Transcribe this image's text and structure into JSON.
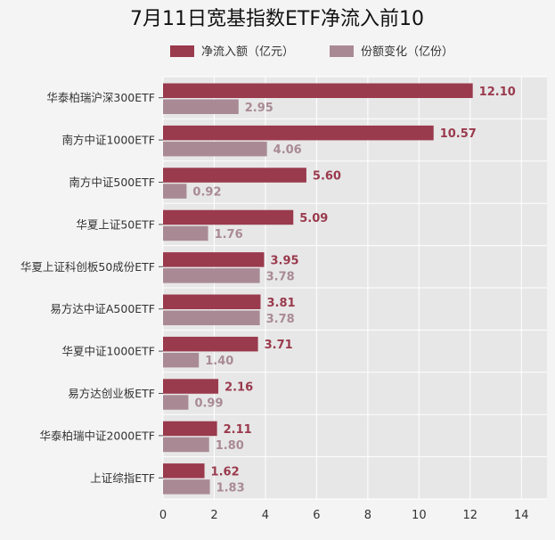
{
  "chart_data": {
    "type": "bar",
    "orientation": "horizontal",
    "title": "7月11日宽基指数ETF净流入前10",
    "categories": [
      "华泰柏瑞沪深300ETF",
      "南方中证1000ETF",
      "南方中证500ETF",
      "华夏上证50ETF",
      "华夏上证科创板50成份ETF",
      "易方达中证A500ETF",
      "华夏中证1000ETF",
      "易方达创业板ETF",
      "华泰柏瑞中证2000ETF",
      "上证综指ETF"
    ],
    "series": [
      {
        "name": "净流入额（亿元）",
        "color": "#9a3a4d",
        "values": [
          12.1,
          10.57,
          5.6,
          5.09,
          3.95,
          3.81,
          3.71,
          2.16,
          2.11,
          1.62
        ],
        "labels": [
          "12.10",
          "10.57",
          "5.60",
          "5.09",
          "3.95",
          "3.81",
          "3.71",
          "2.16",
          "2.11",
          "1.62"
        ]
      },
      {
        "name": "份额变化（亿份）",
        "color": "#a98a94",
        "values": [
          2.95,
          4.06,
          0.92,
          1.76,
          3.78,
          3.78,
          1.4,
          0.99,
          1.8,
          1.83
        ],
        "labels": [
          "2.95",
          "4.06",
          "0.92",
          "1.76",
          "3.78",
          "3.78",
          "1.40",
          "0.99",
          "1.80",
          "1.83"
        ]
      }
    ],
    "xlim": [
      0,
      15
    ],
    "xticks": [
      0,
      2,
      4,
      6,
      8,
      10,
      12,
      14
    ],
    "xtick_labels": [
      "0",
      "2",
      "4",
      "6",
      "8",
      "10",
      "12",
      "14"
    ],
    "grid": true,
    "legend_position": "top",
    "colors": {
      "background": "#f4f4f4",
      "plot_background": "#e7e7e7",
      "grid": "#ffffff",
      "text": "#333333"
    }
  }
}
